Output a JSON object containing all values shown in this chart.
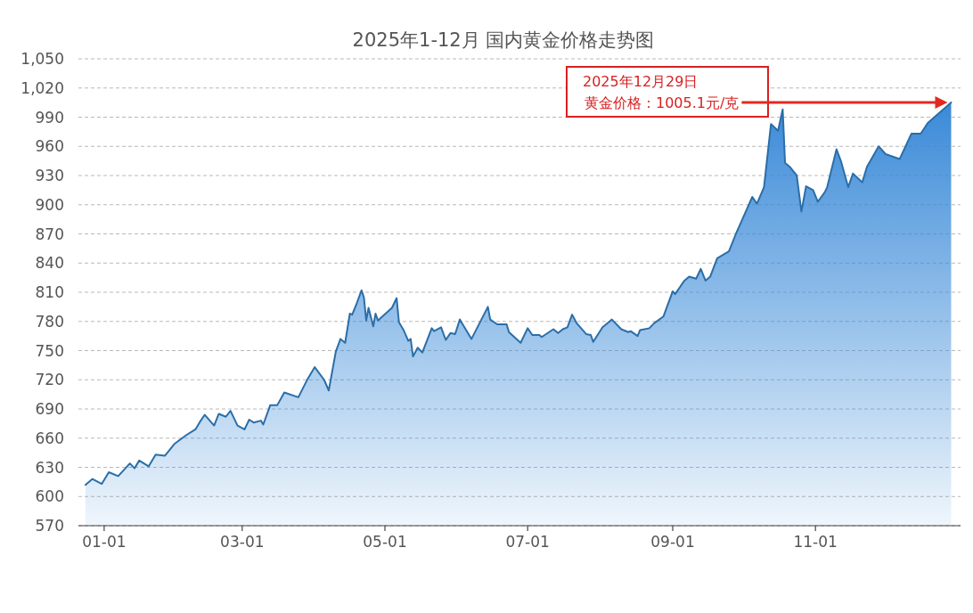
{
  "chart_data": {
    "type": "area",
    "title": "2025年1-12月  国内黄金价格走势图",
    "x": [
      "2024-12-24",
      "2024-12-27",
      "2024-12-31",
      "2025-01-03",
      "2025-01-07",
      "2025-01-12",
      "2025-01-14",
      "2025-01-16",
      "2025-01-20",
      "2025-01-23",
      "2025-01-27",
      "2025-01-31",
      "2025-02-05",
      "2025-02-09",
      "2025-02-11",
      "2025-02-13",
      "2025-02-17",
      "2025-02-19",
      "2025-02-22",
      "2025-02-24",
      "2025-02-27",
      "2025-03-02",
      "2025-03-04",
      "2025-03-06",
      "2025-03-09",
      "2025-03-10",
      "2025-03-13",
      "2025-03-16",
      "2025-03-19",
      "2025-03-25",
      "2025-03-29",
      "2025-04-01",
      "2025-04-05",
      "2025-04-07",
      "2025-04-10",
      "2025-04-12",
      "2025-04-14",
      "2025-04-16",
      "2025-04-17",
      "2025-04-19",
      "2025-04-21",
      "2025-04-22",
      "2025-04-23",
      "2025-04-24",
      "2025-04-26",
      "2025-04-27",
      "2025-04-28",
      "2025-05-04",
      "2025-05-06",
      "2025-05-07",
      "2025-05-09",
      "2025-05-11",
      "2025-05-12",
      "2025-05-13",
      "2025-05-15",
      "2025-05-17",
      "2025-05-21",
      "2025-05-22",
      "2025-05-25",
      "2025-05-27",
      "2025-05-29",
      "2025-05-31",
      "2025-06-02",
      "2025-06-03",
      "2025-06-07",
      "2025-06-14",
      "2025-06-15",
      "2025-06-18",
      "2025-06-22",
      "2025-06-23",
      "2025-06-28",
      "2025-07-01",
      "2025-07-03",
      "2025-07-06",
      "2025-07-07",
      "2025-07-12",
      "2025-07-14",
      "2025-07-16",
      "2025-07-18",
      "2025-07-20",
      "2025-07-22",
      "2025-07-26",
      "2025-07-28",
      "2025-07-29",
      "2025-08-02",
      "2025-08-04",
      "2025-08-06",
      "2025-08-10",
      "2025-08-13",
      "2025-08-14",
      "2025-08-17",
      "2025-08-18",
      "2025-08-22",
      "2025-08-24",
      "2025-08-28",
      "2025-09-01",
      "2025-09-02",
      "2025-09-06",
      "2025-09-08",
      "2025-09-11",
      "2025-09-13",
      "2025-09-15",
      "2025-09-17",
      "2025-09-20",
      "2025-09-25",
      "2025-09-28",
      "2025-10-05",
      "2025-10-07",
      "2025-10-10",
      "2025-10-13",
      "2025-10-16",
      "2025-10-18",
      "2025-10-19",
      "2025-10-21",
      "2025-10-24",
      "2025-10-26",
      "2025-10-28",
      "2025-10-31",
      "2025-11-02",
      "2025-11-05",
      "2025-11-06",
      "2025-11-10",
      "2025-11-12",
      "2025-11-15",
      "2025-11-17",
      "2025-11-21",
      "2025-11-23",
      "2025-11-28",
      "2025-12-01",
      "2025-12-07",
      "2025-12-12",
      "2025-12-16",
      "2025-12-19",
      "2025-12-29"
    ],
    "values": [
      612,
      618,
      613,
      625,
      621,
      634,
      629,
      637,
      631,
      643,
      642,
      654,
      663,
      669,
      677,
      684,
      673,
      685,
      682,
      688,
      673,
      669,
      679,
      676,
      678,
      674,
      694,
      694,
      707,
      702,
      721,
      733,
      720,
      709,
      749,
      762,
      758,
      788,
      787,
      799,
      812,
      805,
      781,
      794,
      775,
      788,
      781,
      794,
      804,
      779,
      771,
      760,
      762,
      744,
      753,
      748,
      773,
      770,
      774,
      761,
      768,
      767,
      782,
      778,
      762,
      795,
      782,
      777,
      777,
      769,
      758,
      773,
      766,
      766,
      764,
      772,
      768,
      772,
      774,
      787,
      778,
      767,
      766,
      759,
      774,
      778,
      782,
      772,
      769,
      770,
      765,
      771,
      773,
      778,
      785,
      811,
      808,
      822,
      826,
      824,
      834,
      822,
      826,
      845,
      852,
      870,
      908,
      901,
      918,
      983,
      976,
      998,
      943,
      939,
      930,
      893,
      919,
      915,
      903,
      913,
      918,
      957,
      944,
      918,
      932,
      923,
      939,
      960,
      952,
      947,
      973,
      973,
      984,
      1005.1
    ],
    "color": "#3a8ad8",
    "xlim": [
      "2024-12-21",
      "2026-01-02"
    ],
    "xticks": [
      {
        "value": "2025-01-01",
        "label": "01-01"
      },
      {
        "value": "2025-03-01",
        "label": "03-01"
      },
      {
        "value": "2025-05-01",
        "label": "05-01"
      },
      {
        "value": "2025-07-01",
        "label": "07-01"
      },
      {
        "value": "2025-09-01",
        "label": "09-01"
      },
      {
        "value": "2025-11-01",
        "label": "11-01"
      }
    ],
    "ylim": [
      570,
      1050
    ],
    "yticks": [
      570,
      600,
      630,
      660,
      690,
      720,
      750,
      780,
      810,
      840,
      870,
      900,
      930,
      960,
      990,
      {
        "value": 1020,
        "label": "1,020"
      },
      {
        "value": 1050,
        "label": "1,050"
      }
    ],
    "grid": "y",
    "annotations": [
      "2025年12月29日",
      "黄金价格：1005.1元/克"
    ]
  }
}
